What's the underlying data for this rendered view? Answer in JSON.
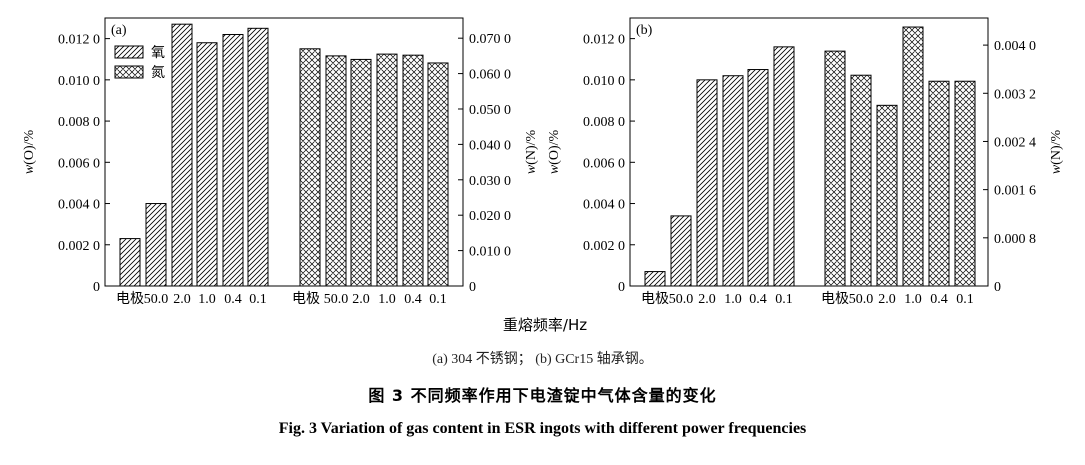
{
  "xlabel_shared": "重熔频率/Hz",
  "caption_sub": "(a) 304 不锈钢； (b) GCr15 轴承钢。",
  "caption_cn": "图 3   不同频率作用下电渣锭中气体含量的变化",
  "caption_en": "Fig. 3   Variation of gas content in ESR ingots with different power frequencies",
  "colors": {
    "bar_fill": "#ffffff",
    "stroke": "#000000"
  },
  "chart_data": [
    {
      "type": "bar",
      "panel_label": "(a)",
      "categories": [
        "电极",
        "50.0",
        "2.0",
        "1.0",
        "0.4",
        "0.1"
      ],
      "series": [
        {
          "name": "氧",
          "axis": "left",
          "pattern": "diagonal-hatch",
          "values": [
            0.0023,
            0.004,
            0.0127,
            0.0118,
            0.0122,
            0.0125
          ]
        },
        {
          "name": "氮",
          "axis": "right",
          "pattern": "cross-hatch",
          "values": [
            0.067,
            0.065,
            0.064,
            0.0655,
            0.0652,
            0.063
          ]
        }
      ],
      "ylabel": "w(O)/%",
      "ylabel_right": "w(N)/%",
      "ylim": [
        0,
        0.013
      ],
      "ylim_right": [
        0,
        0.0757
      ],
      "yticks": [
        0,
        0.002,
        0.004,
        0.006,
        0.008,
        0.01,
        0.012
      ],
      "ytick_labels": [
        "0",
        "0.002 0",
        "0.004 0",
        "0.006 0",
        "0.008 0",
        "0.010 0",
        "0.012 0"
      ],
      "yticks_right": [
        0,
        0.01,
        0.02,
        0.03,
        0.04,
        0.05,
        0.06,
        0.07
      ],
      "ytick_labels_right": [
        "0",
        "0.010 0",
        "0.020 0",
        "0.030 0",
        "0.040 0",
        "0.050 0",
        "0.060 0",
        "0.070 0"
      ],
      "legend_position": "top-left",
      "grid": false
    },
    {
      "type": "bar",
      "panel_label": "(b)",
      "categories": [
        "电极",
        "50.0",
        "2.0",
        "1.0",
        "0.4",
        "0.1"
      ],
      "series": [
        {
          "name": "O",
          "axis": "left",
          "pattern": "diagonal-hatch",
          "values": [
            0.0007,
            0.0034,
            0.01,
            0.0102,
            0.0105,
            0.0116
          ]
        },
        {
          "name": "N",
          "axis": "right",
          "pattern": "cross-hatch",
          "values": [
            0.0039,
            0.0035,
            0.003,
            0.0043,
            0.0034,
            0.0034
          ]
        }
      ],
      "ylabel": "w(O)/%",
      "ylabel_right": "w(N)/%",
      "ylim": [
        0,
        0.013
      ],
      "ylim_right": [
        0,
        0.00445
      ],
      "yticks": [
        0,
        0.002,
        0.004,
        0.006,
        0.008,
        0.01,
        0.012
      ],
      "ytick_labels": [
        "0",
        "0.002 0",
        "0.004 0",
        "0.006 0",
        "0.008 0",
        "0.010 0",
        "0.012 0"
      ],
      "yticks_right": [
        0,
        0.0008,
        0.0016,
        0.0024,
        0.0032,
        0.004
      ],
      "ytick_labels_right": [
        "0",
        "0.000 8",
        "0.001 6",
        "0.002 4",
        "0.003 2",
        "0.004 0"
      ],
      "grid": false
    }
  ]
}
